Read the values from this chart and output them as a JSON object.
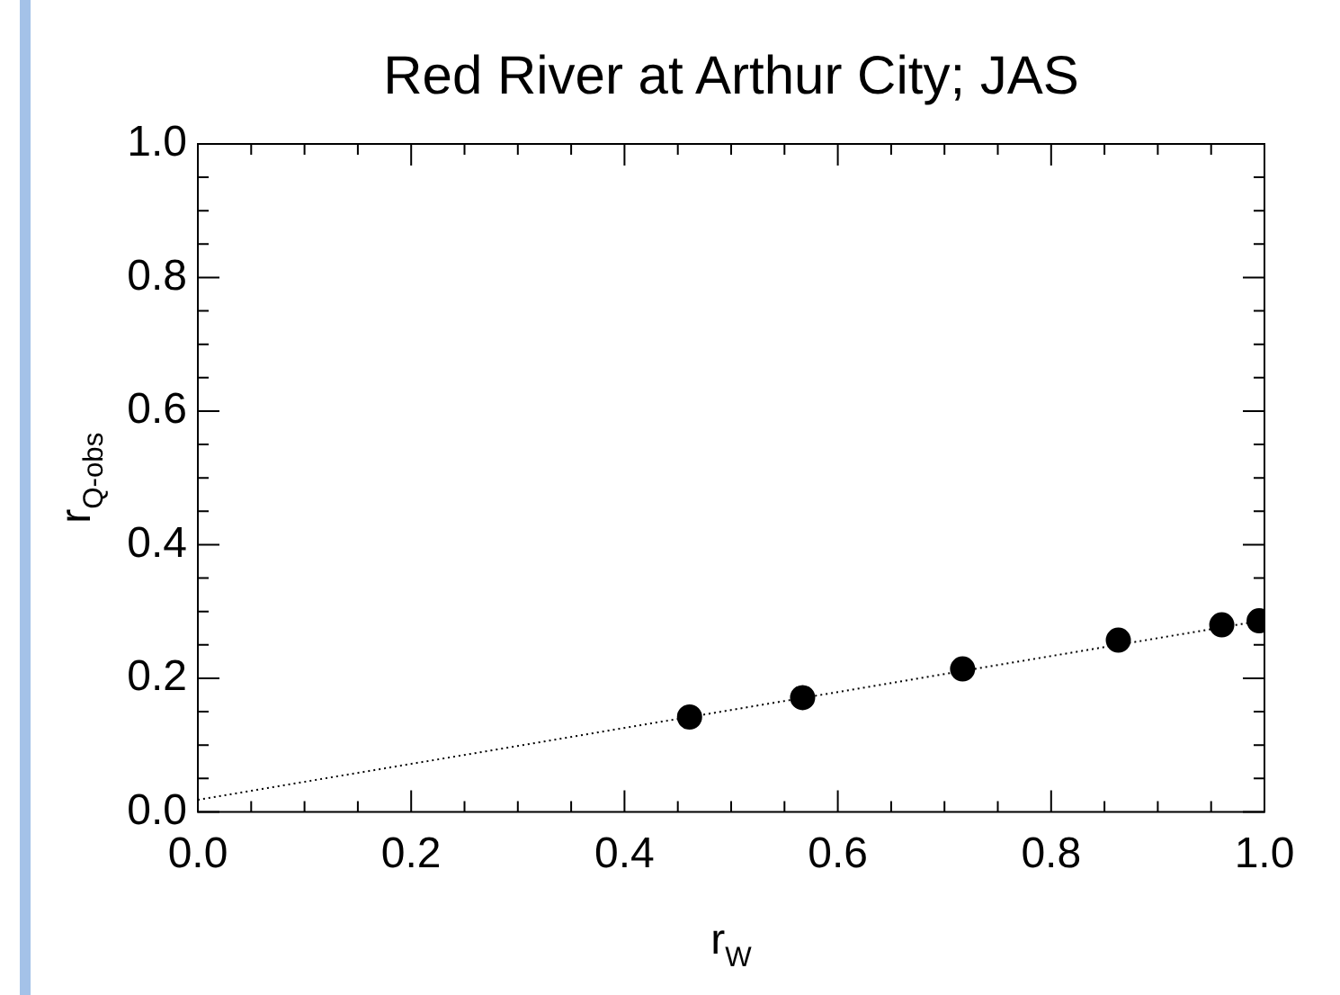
{
  "chart_data": {
    "type": "scatter",
    "title": "Red River at Arthur City; JAS",
    "xlabel": "r$_{W}$",
    "ylabel": "r$_{Q-obs}$",
    "x": [
      0.461,
      0.567,
      0.717,
      0.863,
      0.96,
      0.995
    ],
    "series": [
      {
        "type": "scatter",
        "color": "#000000",
        "marker": "circle",
        "values": [
          0.142,
          0.171,
          0.214,
          0.257,
          0.28,
          0.286
        ]
      },
      {
        "type": "line",
        "color": "#000000",
        "line_style": "dotted",
        "marker": "none",
        "x": [
          0,
          1
        ],
        "values": [
          0.018,
          0.287
        ]
      }
    ],
    "xlim": [
      0,
      1
    ],
    "ylim": [
      0,
      1
    ],
    "xticks": [
      {
        "value": 0,
        "label": "0.0"
      },
      {
        "value": 0.2,
        "label": "0.2"
      },
      {
        "value": 0.4,
        "label": "0.4"
      },
      {
        "value": 0.6,
        "label": "0.6"
      },
      {
        "value": 0.8,
        "label": "0.8"
      },
      {
        "value": 1,
        "label": "1.0"
      }
    ],
    "yticks": [
      {
        "value": 0,
        "label": "0.0"
      },
      {
        "value": 0.2,
        "label": "0.2"
      },
      {
        "value": 0.4,
        "label": "0.4"
      },
      {
        "value": 0.6,
        "label": "0.6"
      },
      {
        "value": 0.8,
        "label": "0.8"
      },
      {
        "value": 1,
        "label": "1.0"
      }
    ],
    "grid": false,
    "legend": false
  }
}
